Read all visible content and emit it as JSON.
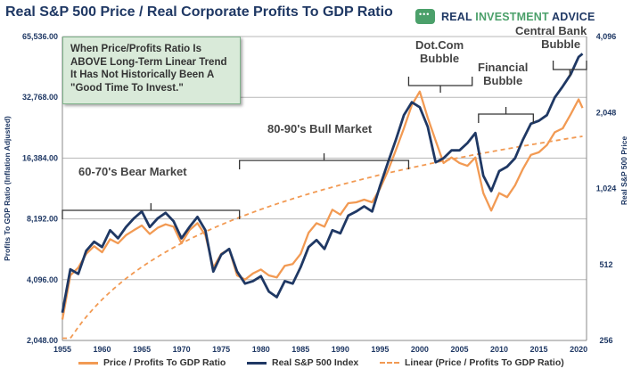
{
  "title": "Real S&P 500 Price / Real Corporate Profits To GDP Ratio",
  "brand": {
    "part1": "REAL ",
    "part2": "INVESTMENT",
    "part3": " ADVICE"
  },
  "note_lines": [
    "When Price/Profits Ratio Is",
    "ABOVE Long-Term Linear Trend",
    "It Has Not Historically Been A",
    "\"Good Time To Invest.\""
  ],
  "annotations": {
    "bear": "60-70's Bear Market",
    "bull": "80-90's Bull Market",
    "dotcom_1": "Dot.Com",
    "dotcom_2": "Bubble",
    "fin_1": "Financial",
    "fin_2": "Bubble",
    "cb_1": "Central Bank",
    "cb_2": "Bubble"
  },
  "legend": {
    "s1": "Price / Profits To GDP Ratio",
    "s2": "Real S&P 500 Index",
    "s3": "Linear (Price / Profits To GDP Ratio)"
  },
  "colors": {
    "orange": "#f29a53",
    "navy": "#1f3864",
    "grid": "#b7b7b7",
    "brand_green": "#4ba06a"
  },
  "chart_data": {
    "type": "line",
    "xlim": [
      1955,
      2021
    ],
    "x_ticks": [
      "1955",
      "1960",
      "1965",
      "1970",
      "1975",
      "1980",
      "1985",
      "1990",
      "1995",
      "2000",
      "2005",
      "2010",
      "2015",
      "2020"
    ],
    "y_left": {
      "label": "Profits To GDP Ratio (Inflation Adjusted)",
      "scale": "log2",
      "ylim": [
        2048,
        65536
      ],
      "ticks": [
        "2,048.00",
        "4,096.00",
        "8,192.00",
        "16,384.00",
        "32,768.00",
        "65,536.00"
      ]
    },
    "y_right": {
      "label": "Real S&P 500 Price",
      "scale": "log2",
      "ylim": [
        256,
        4096
      ],
      "ticks": [
        "256",
        "512",
        "1,024",
        "2,048",
        "4,096"
      ]
    },
    "series": [
      {
        "name": "Price / Profits To GDP Ratio",
        "axis": "left",
        "style": "solid",
        "x": [
          1955,
          1956,
          1957,
          1958,
          1959,
          1960,
          1961,
          1962,
          1963,
          1964,
          1965,
          1966,
          1967,
          1968,
          1969,
          1970,
          1971,
          1972,
          1973,
          1974,
          1975,
          1976,
          1977,
          1978,
          1979,
          1980,
          1981,
          1982,
          1983,
          1984,
          1985,
          1986,
          1987,
          1988,
          1989,
          1990,
          1991,
          1992,
          1993,
          1994,
          1995,
          1996,
          1997,
          1998,
          1999,
          2000,
          2001,
          2002,
          2003,
          2004,
          2005,
          2006,
          2007,
          2008,
          2009,
          2010,
          2011,
          2012,
          2013,
          2014,
          2015,
          2016,
          2017,
          2018,
          2019,
          2020,
          2020.5
        ],
        "y": [
          2600,
          4300,
          4700,
          5500,
          6000,
          5600,
          6500,
          6200,
          6800,
          7200,
          7600,
          6900,
          7400,
          7700,
          7500,
          6200,
          7200,
          7800,
          6800,
          4700,
          5500,
          5800,
          4300,
          4100,
          4400,
          4600,
          4300,
          4200,
          4800,
          4900,
          5500,
          7000,
          7800,
          7500,
          9100,
          8600,
          9800,
          9900,
          10200,
          9900,
          11600,
          14200,
          18000,
          23000,
          30000,
          35000,
          26000,
          20000,
          15500,
          16500,
          15500,
          15000,
          16500,
          11000,
          9000,
          11000,
          10500,
          12000,
          14500,
          17000,
          17500,
          19000,
          22000,
          23000,
          27000,
          32000,
          29000
        ]
      },
      {
        "name": "Real S&P 500 Index",
        "axis": "right",
        "style": "solid",
        "x": [
          1955,
          1956,
          1957,
          1958,
          1959,
          1960,
          1961,
          1962,
          1963,
          1964,
          1965,
          1966,
          1967,
          1968,
          1969,
          1970,
          1971,
          1972,
          1973,
          1974,
          1975,
          1976,
          1977,
          1978,
          1979,
          1980,
          1981,
          1982,
          1983,
          1984,
          1985,
          1986,
          1987,
          1988,
          1989,
          1990,
          1991,
          1992,
          1993,
          1994,
          1995,
          1996,
          1997,
          1998,
          1999,
          2000,
          2001,
          2002,
          2003,
          2004,
          2005,
          2006,
          2007,
          2008,
          2009,
          2010,
          2011,
          2012,
          2013,
          2014,
          2015,
          2016,
          2017,
          2018,
          2019,
          2020,
          2020.5
        ],
        "y": [
          330,
          490,
          470,
          580,
          630,
          600,
          700,
          650,
          720,
          780,
          830,
          720,
          780,
          820,
          760,
          650,
          720,
          790,
          700,
          480,
          560,
          590,
          480,
          430,
          440,
          460,
          400,
          380,
          440,
          430,
          500,
          600,
          640,
          590,
          700,
          680,
          800,
          830,
          870,
          830,
          1050,
          1300,
          1600,
          2000,
          2250,
          2150,
          1800,
          1300,
          1350,
          1450,
          1450,
          1550,
          1700,
          1150,
          1000,
          1200,
          1250,
          1350,
          1600,
          1850,
          1900,
          2000,
          2350,
          2600,
          2900,
          3400,
          3500
        ]
      },
      {
        "name": "Linear (Price / Profits To GDP Ratio)",
        "axis": "left",
        "style": "dashed",
        "fit": "linear"
      }
    ]
  }
}
